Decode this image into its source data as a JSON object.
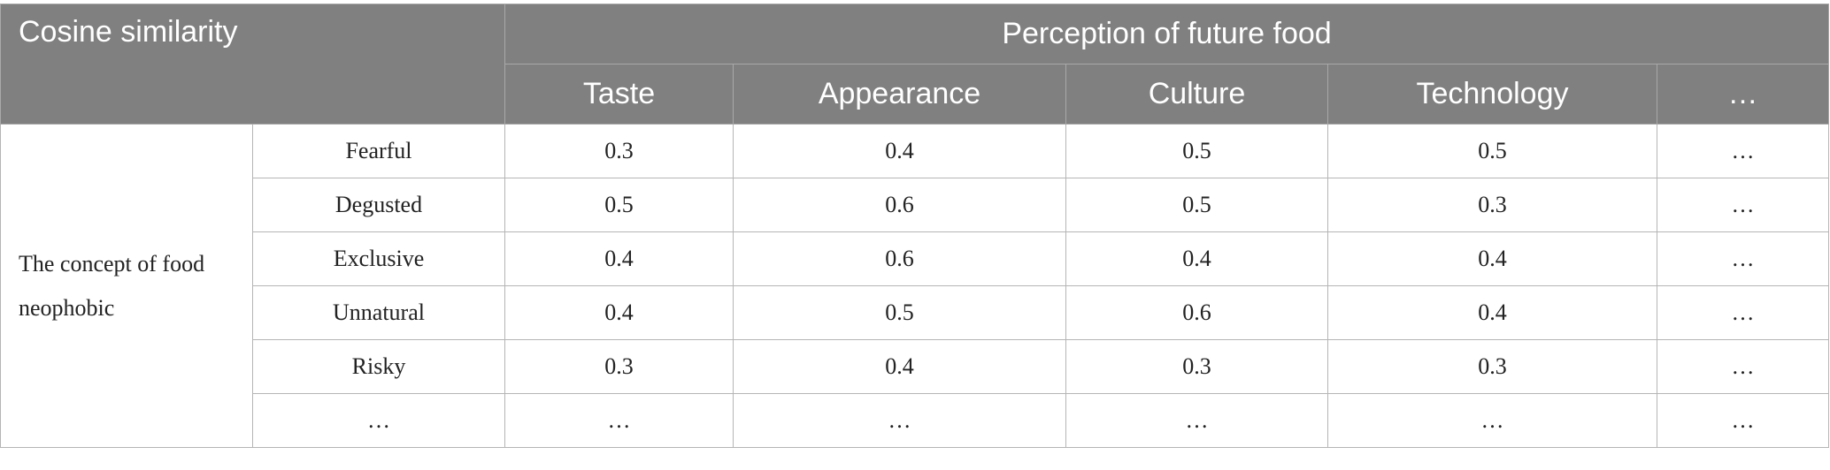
{
  "header": {
    "corner": "Cosine similarity",
    "group": "Perception of future food",
    "columns": [
      "Taste",
      "Appearance",
      "Culture",
      "Technology",
      "…"
    ]
  },
  "table": {
    "row_group": "The concept of food neophobic",
    "rows": [
      {
        "label": "Fearful",
        "cells": [
          0.3,
          0.4,
          0.5,
          0.5,
          "…"
        ]
      },
      {
        "label": "Degusted",
        "cells": [
          0.5,
          0.6,
          0.5,
          0.3,
          "…"
        ]
      },
      {
        "label": "Exclusive",
        "cells": [
          0.4,
          0.6,
          0.4,
          0.4,
          "…"
        ]
      },
      {
        "label": "Unnatural",
        "cells": [
          0.4,
          0.5,
          0.6,
          0.4,
          "…"
        ]
      },
      {
        "label": "Risky",
        "cells": [
          0.3,
          0.4,
          0.3,
          0.3,
          "…"
        ]
      },
      {
        "label": "…",
        "cells": [
          "…",
          "…",
          "…",
          "…",
          "…"
        ]
      }
    ]
  }
}
